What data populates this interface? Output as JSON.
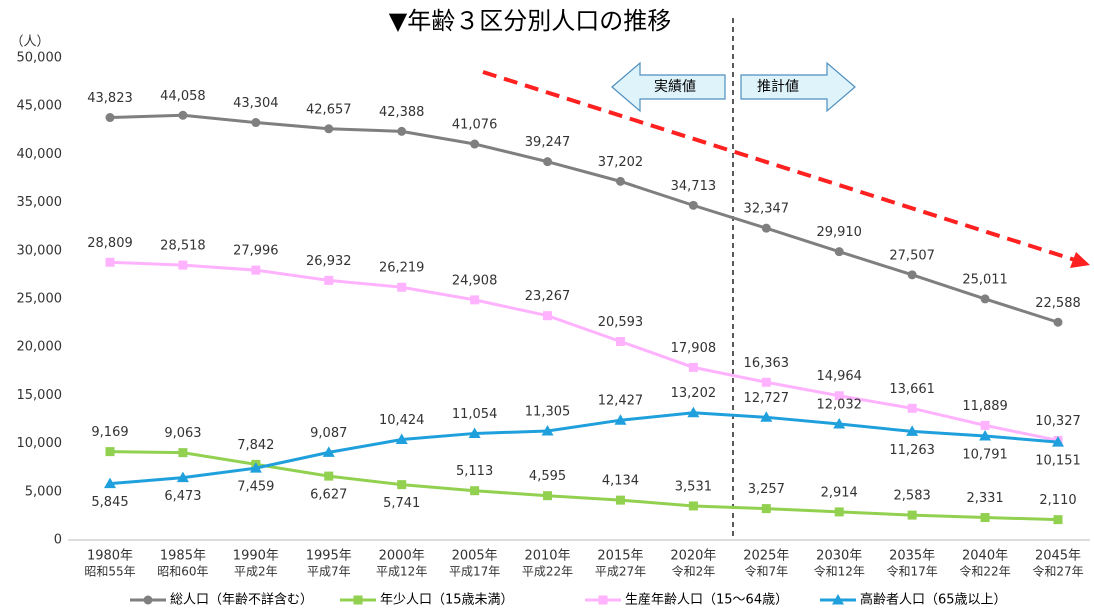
{
  "chart_data": {
    "type": "line",
    "title": "▼年齢３区分別人口の推移",
    "y_unit": "（人）",
    "annotations": [
      "実績値",
      "推計値"
    ],
    "categories": [
      "1980年",
      "1985年",
      "1990年",
      "1995年",
      "2000年",
      "2005年",
      "2010年",
      "2015年",
      "2020年",
      "2025年",
      "2030年",
      "2035年",
      "2040年",
      "2045年"
    ],
    "category_sublabels": [
      "昭和55年",
      "昭和60年",
      "平成2年",
      "平成7年",
      "平成12年",
      "平成17年",
      "平成22年",
      "平成27年",
      "令和2年",
      "令和7年",
      "令和12年",
      "令和17年",
      "令和22年",
      "令和27年"
    ],
    "series": [
      {
        "name": "総人口（年齢不詳含む）",
        "color": "#7f7f7f",
        "marker": "circle",
        "values": [
          43823,
          44058,
          43304,
          42657,
          42388,
          41076,
          39247,
          37202,
          34713,
          32347,
          29910,
          27507,
          25011,
          22588
        ],
        "value_labels": [
          "43,823",
          "44,058",
          "43,304",
          "42,657",
          "42,388",
          "41,076",
          "39,247",
          "37,202",
          "34,713",
          "32,347",
          "29,910",
          "27,507",
          "25,011",
          "22,588"
        ]
      },
      {
        "name": "年少人口（15歳未満）",
        "color": "#92d050",
        "marker": "square",
        "values": [
          9169,
          9063,
          7842,
          6627,
          5741,
          5113,
          4595,
          4134,
          3531,
          3257,
          2914,
          2583,
          2331,
          2110
        ],
        "value_labels": [
          "9,169",
          "9,063",
          "7,842",
          "6,627",
          "5,741",
          "5,113",
          "4,595",
          "4,134",
          "3,531",
          "3,257",
          "2,914",
          "2,583",
          "2,331",
          "2,110"
        ]
      },
      {
        "name": "生産年齢人口（15～64歳）",
        "color": "#ffb3ff",
        "marker": "square",
        "values": [
          28809,
          28518,
          27996,
          26932,
          26219,
          24908,
          23267,
          20593,
          17908,
          16363,
          14964,
          13661,
          11889,
          10327
        ],
        "value_labels": [
          "28,809",
          "28,518",
          "27,996",
          "26,932",
          "26,219",
          "24,908",
          "23,267",
          "20,593",
          "17,908",
          "16,363",
          "14,964",
          "13,661",
          "11,889",
          "10,327"
        ]
      },
      {
        "name": "高齢者人口（65歳以上）",
        "color": "#1fa0dc",
        "marker": "triangle",
        "values": [
          5845,
          6473,
          7459,
          9087,
          10424,
          11054,
          11305,
          12427,
          13202,
          12727,
          12032,
          11263,
          10791,
          10151
        ],
        "value_labels": [
          "5,845",
          "6,473",
          "7,459",
          "9,087",
          "10,424",
          "11,054",
          "11,305",
          "12,427",
          "13,202",
          "12,727",
          "12,032",
          "11,263",
          "10,791",
          "10,151"
        ]
      }
    ],
    "ylim": [
      0,
      50000
    ],
    "yticks": [
      0,
      {
        "value": 5000,
        "label": "5,000"
      },
      {
        "value": 10000,
        "label": "10,000"
      },
      {
        "value": 15000,
        "label": "15,000"
      },
      {
        "value": 20000,
        "label": "20,000"
      },
      {
        "value": 25000,
        "label": "25,000"
      },
      {
        "value": 30000,
        "label": "30,000"
      },
      {
        "value": 35000,
        "label": "35,000"
      },
      {
        "value": 40000,
        "label": "40,000"
      },
      {
        "value": 45000,
        "label": "45,000"
      },
      {
        "value": 50000,
        "label": "50,000"
      }
    ],
    "grid": false,
    "legend": "bottom"
  }
}
